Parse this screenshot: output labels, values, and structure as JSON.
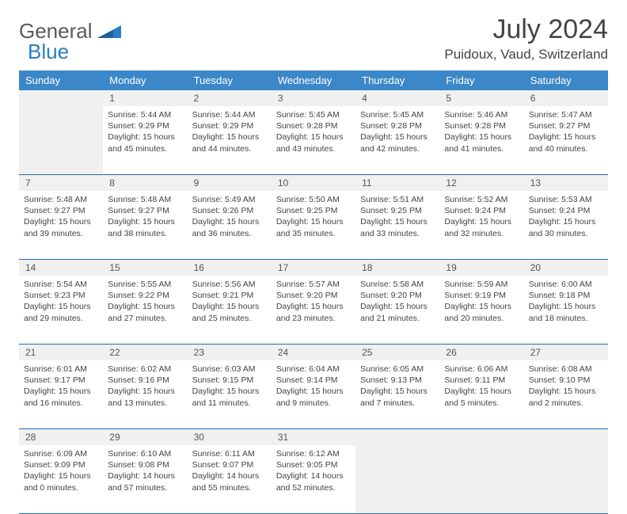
{
  "logo": {
    "text1": "General",
    "text2": "Blue"
  },
  "title": "July 2024",
  "location": "Puidoux, Vaud, Switzerland",
  "colors": {
    "header_bg": "#3b87c8",
    "border": "#2a6aa8",
    "daynum_bg": "#f0f0f0",
    "text": "#444444",
    "logo_gray": "#5a5a5a",
    "logo_blue": "#2a7ec2"
  },
  "weekdays": [
    "Sunday",
    "Monday",
    "Tuesday",
    "Wednesday",
    "Thursday",
    "Friday",
    "Saturday"
  ],
  "weeks": [
    {
      "numbers": [
        "",
        "1",
        "2",
        "3",
        "4",
        "5",
        "6"
      ],
      "cells": [
        null,
        {
          "sunrise": "Sunrise: 5:44 AM",
          "sunset": "Sunset: 9:29 PM",
          "day1": "Daylight: 15 hours",
          "day2": "and 45 minutes."
        },
        {
          "sunrise": "Sunrise: 5:44 AM",
          "sunset": "Sunset: 9:29 PM",
          "day1": "Daylight: 15 hours",
          "day2": "and 44 minutes."
        },
        {
          "sunrise": "Sunrise: 5:45 AM",
          "sunset": "Sunset: 9:28 PM",
          "day1": "Daylight: 15 hours",
          "day2": "and 43 minutes."
        },
        {
          "sunrise": "Sunrise: 5:45 AM",
          "sunset": "Sunset: 9:28 PM",
          "day1": "Daylight: 15 hours",
          "day2": "and 42 minutes."
        },
        {
          "sunrise": "Sunrise: 5:46 AM",
          "sunset": "Sunset: 9:28 PM",
          "day1": "Daylight: 15 hours",
          "day2": "and 41 minutes."
        },
        {
          "sunrise": "Sunrise: 5:47 AM",
          "sunset": "Sunset: 9:27 PM",
          "day1": "Daylight: 15 hours",
          "day2": "and 40 minutes."
        }
      ]
    },
    {
      "numbers": [
        "7",
        "8",
        "9",
        "10",
        "11",
        "12",
        "13"
      ],
      "cells": [
        {
          "sunrise": "Sunrise: 5:48 AM",
          "sunset": "Sunset: 9:27 PM",
          "day1": "Daylight: 15 hours",
          "day2": "and 39 minutes."
        },
        {
          "sunrise": "Sunrise: 5:48 AM",
          "sunset": "Sunset: 9:27 PM",
          "day1": "Daylight: 15 hours",
          "day2": "and 38 minutes."
        },
        {
          "sunrise": "Sunrise: 5:49 AM",
          "sunset": "Sunset: 9:26 PM",
          "day1": "Daylight: 15 hours",
          "day2": "and 36 minutes."
        },
        {
          "sunrise": "Sunrise: 5:50 AM",
          "sunset": "Sunset: 9:25 PM",
          "day1": "Daylight: 15 hours",
          "day2": "and 35 minutes."
        },
        {
          "sunrise": "Sunrise: 5:51 AM",
          "sunset": "Sunset: 9:25 PM",
          "day1": "Daylight: 15 hours",
          "day2": "and 33 minutes."
        },
        {
          "sunrise": "Sunrise: 5:52 AM",
          "sunset": "Sunset: 9:24 PM",
          "day1": "Daylight: 15 hours",
          "day2": "and 32 minutes."
        },
        {
          "sunrise": "Sunrise: 5:53 AM",
          "sunset": "Sunset: 9:24 PM",
          "day1": "Daylight: 15 hours",
          "day2": "and 30 minutes."
        }
      ]
    },
    {
      "numbers": [
        "14",
        "15",
        "16",
        "17",
        "18",
        "19",
        "20"
      ],
      "cells": [
        {
          "sunrise": "Sunrise: 5:54 AM",
          "sunset": "Sunset: 9:23 PM",
          "day1": "Daylight: 15 hours",
          "day2": "and 29 minutes."
        },
        {
          "sunrise": "Sunrise: 5:55 AM",
          "sunset": "Sunset: 9:22 PM",
          "day1": "Daylight: 15 hours",
          "day2": "and 27 minutes."
        },
        {
          "sunrise": "Sunrise: 5:56 AM",
          "sunset": "Sunset: 9:21 PM",
          "day1": "Daylight: 15 hours",
          "day2": "and 25 minutes."
        },
        {
          "sunrise": "Sunrise: 5:57 AM",
          "sunset": "Sunset: 9:20 PM",
          "day1": "Daylight: 15 hours",
          "day2": "and 23 minutes."
        },
        {
          "sunrise": "Sunrise: 5:58 AM",
          "sunset": "Sunset: 9:20 PM",
          "day1": "Daylight: 15 hours",
          "day2": "and 21 minutes."
        },
        {
          "sunrise": "Sunrise: 5:59 AM",
          "sunset": "Sunset: 9:19 PM",
          "day1": "Daylight: 15 hours",
          "day2": "and 20 minutes."
        },
        {
          "sunrise": "Sunrise: 6:00 AM",
          "sunset": "Sunset: 9:18 PM",
          "day1": "Daylight: 15 hours",
          "day2": "and 18 minutes."
        }
      ]
    },
    {
      "numbers": [
        "21",
        "22",
        "23",
        "24",
        "25",
        "26",
        "27"
      ],
      "cells": [
        {
          "sunrise": "Sunrise: 6:01 AM",
          "sunset": "Sunset: 9:17 PM",
          "day1": "Daylight: 15 hours",
          "day2": "and 16 minutes."
        },
        {
          "sunrise": "Sunrise: 6:02 AM",
          "sunset": "Sunset: 9:16 PM",
          "day1": "Daylight: 15 hours",
          "day2": "and 13 minutes."
        },
        {
          "sunrise": "Sunrise: 6:03 AM",
          "sunset": "Sunset: 9:15 PM",
          "day1": "Daylight: 15 hours",
          "day2": "and 11 minutes."
        },
        {
          "sunrise": "Sunrise: 6:04 AM",
          "sunset": "Sunset: 9:14 PM",
          "day1": "Daylight: 15 hours",
          "day2": "and 9 minutes."
        },
        {
          "sunrise": "Sunrise: 6:05 AM",
          "sunset": "Sunset: 9:13 PM",
          "day1": "Daylight: 15 hours",
          "day2": "and 7 minutes."
        },
        {
          "sunrise": "Sunrise: 6:06 AM",
          "sunset": "Sunset: 9:11 PM",
          "day1": "Daylight: 15 hours",
          "day2": "and 5 minutes."
        },
        {
          "sunrise": "Sunrise: 6:08 AM",
          "sunset": "Sunset: 9:10 PM",
          "day1": "Daylight: 15 hours",
          "day2": "and 2 minutes."
        }
      ]
    },
    {
      "numbers": [
        "28",
        "29",
        "30",
        "31",
        "",
        "",
        ""
      ],
      "cells": [
        {
          "sunrise": "Sunrise: 6:09 AM",
          "sunset": "Sunset: 9:09 PM",
          "day1": "Daylight: 15 hours",
          "day2": "and 0 minutes."
        },
        {
          "sunrise": "Sunrise: 6:10 AM",
          "sunset": "Sunset: 9:08 PM",
          "day1": "Daylight: 14 hours",
          "day2": "and 57 minutes."
        },
        {
          "sunrise": "Sunrise: 6:11 AM",
          "sunset": "Sunset: 9:07 PM",
          "day1": "Daylight: 14 hours",
          "day2": "and 55 minutes."
        },
        {
          "sunrise": "Sunrise: 6:12 AM",
          "sunset": "Sunset: 9:05 PM",
          "day1": "Daylight: 14 hours",
          "day2": "and 52 minutes."
        },
        null,
        null,
        null
      ]
    }
  ]
}
